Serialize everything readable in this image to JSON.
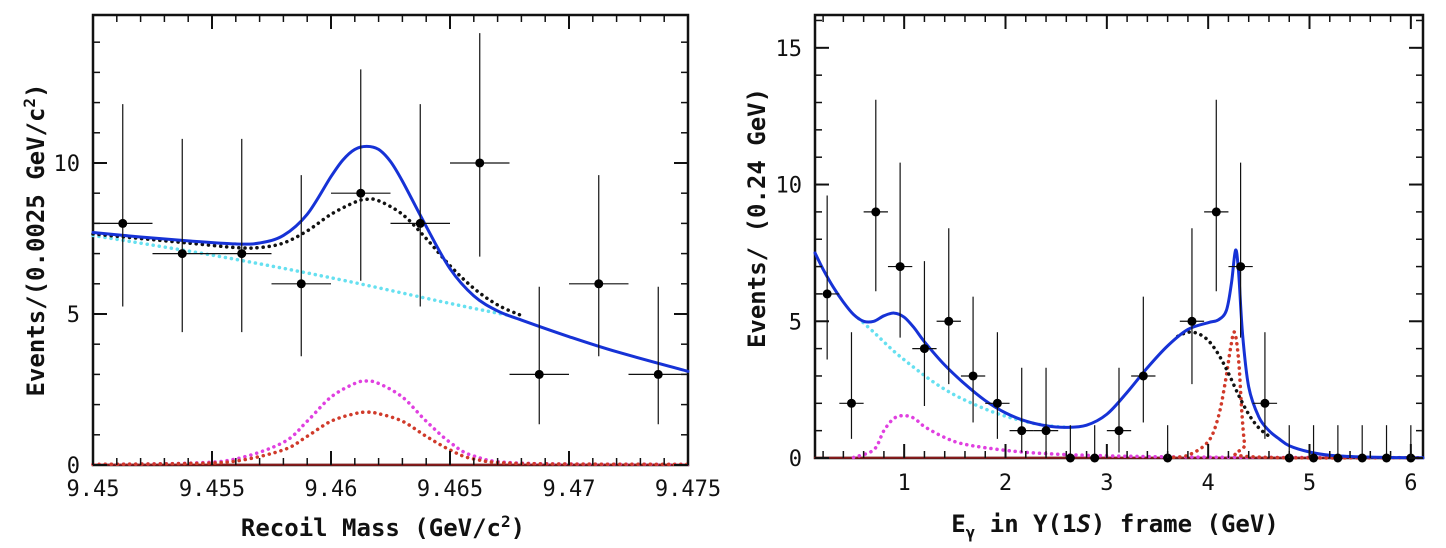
{
  "chart_data": [
    {
      "type": "scatter",
      "panel": "left",
      "xlabel": "Recoil Mass (GeV/c²)",
      "ylabel": "Events/(0.0025 GeV/c²)",
      "xlim": [
        9.45,
        9.475
      ],
      "ylim": [
        0,
        14.9
      ],
      "x_ticks": [
        9.45,
        9.455,
        9.46,
        9.465,
        9.47,
        9.475
      ],
      "x_tick_labels": [
        "9.45",
        "9.455",
        "9.46",
        "9.465",
        "9.47",
        "9.475"
      ],
      "y_ticks": [
        0,
        5,
        10
      ],
      "y_tick_labels": [
        "0",
        "5",
        "10"
      ],
      "points": [
        {
          "x": 9.45125,
          "y": 8,
          "xerr": 0.00125,
          "ylo": 5.25,
          "yhi": 11.95
        },
        {
          "x": 9.45375,
          "y": 7,
          "xerr": 0.00125,
          "ylo": 4.4,
          "yhi": 10.8
        },
        {
          "x": 9.45625,
          "y": 7,
          "xerr": 0.00125,
          "ylo": 4.4,
          "yhi": 10.8
        },
        {
          "x": 9.45875,
          "y": 6,
          "xerr": 0.00125,
          "ylo": 3.6,
          "yhi": 9.6
        },
        {
          "x": 9.46125,
          "y": 9,
          "xerr": 0.00125,
          "ylo": 6.1,
          "yhi": 13.1
        },
        {
          "x": 9.46375,
          "y": 8,
          "xerr": 0.00125,
          "ylo": 5.25,
          "yhi": 11.95
        },
        {
          "x": 9.46625,
          "y": 10,
          "xerr": 0.00125,
          "ylo": 6.9,
          "yhi": 14.3
        },
        {
          "x": 9.46875,
          "y": 3,
          "xerr": 0.00125,
          "ylo": 1.35,
          "yhi": 5.9
        },
        {
          "x": 9.47125,
          "y": 6,
          "xerr": 0.00125,
          "ylo": 3.6,
          "yhi": 9.6
        },
        {
          "x": 9.47375,
          "y": 3,
          "xerr": 0.00125,
          "ylo": 1.35,
          "yhi": 5.9
        }
      ],
      "curves": [
        {
          "name": "total fit",
          "color": "#1632d6",
          "style": "solid",
          "x": [
            9.45,
            9.452,
            9.454,
            9.456,
            9.457,
            9.458,
            9.459,
            9.46,
            9.4605,
            9.461,
            9.4615,
            9.462,
            9.4625,
            9.463,
            9.464,
            9.465,
            9.466,
            9.467,
            9.468,
            9.47,
            9.472,
            9.475
          ],
          "y": [
            7.7,
            7.55,
            7.42,
            7.32,
            7.35,
            7.6,
            8.3,
            9.55,
            10.1,
            10.45,
            10.55,
            10.45,
            10.05,
            9.4,
            7.9,
            6.5,
            5.6,
            5.1,
            4.8,
            4.25,
            3.75,
            3.1
          ]
        },
        {
          "name": "peaking background",
          "color": "#111111",
          "style": "dotted",
          "x": [
            9.45,
            9.452,
            9.454,
            9.456,
            9.457,
            9.458,
            9.459,
            9.46,
            9.461,
            9.4615,
            9.462,
            9.463,
            9.464,
            9.465,
            9.466,
            9.467,
            9.468
          ],
          "y": [
            7.65,
            7.5,
            7.35,
            7.2,
            7.2,
            7.35,
            7.75,
            8.3,
            8.7,
            8.8,
            8.75,
            8.3,
            7.5,
            6.6,
            5.85,
            5.3,
            4.95
          ]
        },
        {
          "name": "continuum background",
          "color": "#66e0f0",
          "style": "dotted",
          "x": [
            9.45,
            9.455,
            9.46,
            9.465,
            9.4675
          ],
          "y": [
            7.6,
            6.95,
            6.2,
            5.35,
            4.95
          ]
        },
        {
          "name": "signal component",
          "color": "#e040e0",
          "style": "dotted",
          "x": [
            9.45,
            9.454,
            9.456,
            9.458,
            9.459,
            9.46,
            9.461,
            9.4615,
            9.462,
            9.463,
            9.464,
            9.465,
            9.466,
            9.468,
            9.475
          ],
          "y": [
            0.02,
            0.06,
            0.2,
            0.75,
            1.45,
            2.25,
            2.7,
            2.78,
            2.7,
            2.25,
            1.45,
            0.75,
            0.3,
            0.06,
            0.02
          ]
        },
        {
          "name": "peaking component",
          "color": "#d03a2a",
          "style": "dotted",
          "x": [
            9.45,
            9.454,
            9.456,
            9.458,
            9.459,
            9.46,
            9.461,
            9.4615,
            9.462,
            9.463,
            9.464,
            9.465,
            9.466,
            9.468,
            9.475
          ],
          "y": [
            0.02,
            0.05,
            0.13,
            0.5,
            0.95,
            1.45,
            1.7,
            1.75,
            1.7,
            1.45,
            0.95,
            0.5,
            0.2,
            0.05,
            0.02
          ]
        },
        {
          "name": "baseline",
          "color": "#8b1a1a",
          "style": "solid",
          "x": [
            9.45,
            9.475
          ],
          "y": [
            0.01,
            0.01
          ]
        }
      ]
    },
    {
      "type": "scatter",
      "panel": "right",
      "xlabel_main": "E",
      "xlabel_sub": "γ",
      "xlabel_mid": " in Υ(1",
      "xlabel_italic": "S",
      "xlabel_end": ") frame (GeV)",
      "ylabel": "Events/ (0.24 GeV)",
      "xlim": [
        0.12,
        6.12
      ],
      "ylim": [
        0,
        16.2
      ],
      "x_ticks": [
        1,
        2,
        3,
        4,
        5,
        6
      ],
      "x_tick_labels": [
        "1",
        "2",
        "3",
        "4",
        "5",
        "6"
      ],
      "y_ticks": [
        0,
        5,
        10,
        15
      ],
      "y_tick_labels": [
        "0",
        "5",
        "10",
        "15"
      ],
      "points": [
        {
          "x": 0.24,
          "y": 6,
          "xerr": 0.12,
          "ylo": 3.6,
          "yhi": 9.6
        },
        {
          "x": 0.48,
          "y": 2,
          "xerr": 0.12,
          "ylo": 0.7,
          "yhi": 4.6
        },
        {
          "x": 0.72,
          "y": 9,
          "xerr": 0.12,
          "ylo": 6.1,
          "yhi": 13.1
        },
        {
          "x": 0.96,
          "y": 7,
          "xerr": 0.12,
          "ylo": 4.4,
          "yhi": 10.8
        },
        {
          "x": 1.2,
          "y": 4,
          "xerr": 0.12,
          "ylo": 1.9,
          "yhi": 7.2
        },
        {
          "x": 1.44,
          "y": 5,
          "xerr": 0.12,
          "ylo": 2.7,
          "yhi": 8.4
        },
        {
          "x": 1.68,
          "y": 3,
          "xerr": 0.12,
          "ylo": 1.3,
          "yhi": 5.9
        },
        {
          "x": 1.92,
          "y": 2,
          "xerr": 0.12,
          "ylo": 0.7,
          "yhi": 4.6
        },
        {
          "x": 2.16,
          "y": 1,
          "xerr": 0.12,
          "ylo": 0.2,
          "yhi": 3.3
        },
        {
          "x": 2.4,
          "y": 1,
          "xerr": 0.12,
          "ylo": 0.2,
          "yhi": 3.3
        },
        {
          "x": 2.64,
          "y": 0,
          "xerr": 0,
          "ylo": 0,
          "yhi": 1.2
        },
        {
          "x": 2.88,
          "y": 0,
          "xerr": 0,
          "ylo": 0,
          "yhi": 1.2
        },
        {
          "x": 3.12,
          "y": 1,
          "xerr": 0.12,
          "ylo": 0.2,
          "yhi": 3.3
        },
        {
          "x": 3.36,
          "y": 3,
          "xerr": 0.12,
          "ylo": 1.3,
          "yhi": 5.9
        },
        {
          "x": 3.6,
          "y": 0,
          "xerr": 0,
          "ylo": 0,
          "yhi": 1.2
        },
        {
          "x": 3.84,
          "y": 5,
          "xerr": 0.12,
          "ylo": 2.7,
          "yhi": 8.4
        },
        {
          "x": 4.08,
          "y": 9,
          "xerr": 0.12,
          "ylo": 6.1,
          "yhi": 13.1
        },
        {
          "x": 4.32,
          "y": 7,
          "xerr": 0.12,
          "ylo": 4.4,
          "yhi": 10.8
        },
        {
          "x": 4.56,
          "y": 2,
          "xerr": 0.12,
          "ylo": 0.7,
          "yhi": 4.6
        },
        {
          "x": 4.8,
          "y": 0,
          "xerr": 0,
          "ylo": 0,
          "yhi": 1.2
        },
        {
          "x": 5.04,
          "y": 0,
          "xerr": 0,
          "ylo": 0,
          "yhi": 1.2
        },
        {
          "x": 5.28,
          "y": 0,
          "xerr": 0,
          "ylo": 0,
          "yhi": 1.2
        },
        {
          "x": 5.52,
          "y": 0,
          "xerr": 0,
          "ylo": 0,
          "yhi": 1.2
        },
        {
          "x": 5.76,
          "y": 0,
          "xerr": 0,
          "ylo": 0,
          "yhi": 1.2
        },
        {
          "x": 6.0,
          "y": 0,
          "xerr": 0,
          "ylo": 0,
          "yhi": 1.2
        }
      ],
      "curves": [
        {
          "name": "total fit",
          "color": "#1632d6",
          "style": "solid",
          "x": [
            0.12,
            0.2,
            0.3,
            0.4,
            0.5,
            0.6,
            0.7,
            0.8,
            0.9,
            1.0,
            1.1,
            1.2,
            1.4,
            1.6,
            1.8,
            2.0,
            2.2,
            2.4,
            2.6,
            2.8,
            3.0,
            3.2,
            3.4,
            3.6,
            3.8,
            4.0,
            4.1,
            4.18,
            4.23,
            4.27,
            4.3,
            4.34,
            4.4,
            4.5,
            4.6,
            4.7,
            4.8,
            5.0,
            5.2,
            5.5,
            6.0,
            6.12
          ],
          "y": [
            7.5,
            6.9,
            6.25,
            5.7,
            5.25,
            5.0,
            5.0,
            5.2,
            5.3,
            5.15,
            4.75,
            4.25,
            3.4,
            2.7,
            2.1,
            1.65,
            1.35,
            1.18,
            1.12,
            1.2,
            1.6,
            2.4,
            3.3,
            4.1,
            4.7,
            4.95,
            5.05,
            5.4,
            6.4,
            7.6,
            6.8,
            4.5,
            2.6,
            1.5,
            1.0,
            0.7,
            0.45,
            0.22,
            0.1,
            0.04,
            0.01,
            0.01
          ]
        },
        {
          "name": "continuum background",
          "color": "#66e0f0",
          "style": "dotted",
          "x": [
            0.55,
            0.7,
            0.9,
            1.1,
            1.3,
            1.5,
            1.7,
            1.9,
            2.1,
            2.3,
            2.5,
            2.65
          ],
          "y": [
            5.1,
            4.6,
            3.9,
            3.3,
            2.75,
            2.3,
            1.95,
            1.65,
            1.42,
            1.25,
            1.15,
            1.12
          ]
        },
        {
          "name": "peaking background",
          "color": "#111111",
          "style": "dotted",
          "x": [
            3.7,
            3.8,
            3.9,
            4.0,
            4.1,
            4.2,
            4.3,
            4.4,
            4.5,
            4.6
          ],
          "y": [
            4.45,
            4.6,
            4.55,
            4.3,
            3.8,
            3.1,
            2.3,
            1.6,
            1.1,
            0.8
          ]
        },
        {
          "name": "signal component",
          "color": "#e040e0",
          "style": "dotted",
          "x": [
            0.5,
            0.7,
            0.8,
            0.9,
            1.0,
            1.1,
            1.2,
            1.4,
            1.6,
            2.0,
            2.4,
            3.0,
            4.0,
            6.1
          ],
          "y": [
            0.02,
            0.3,
            1.0,
            1.45,
            1.55,
            1.45,
            1.15,
            0.75,
            0.5,
            0.28,
            0.16,
            0.08,
            0.03,
            0.01
          ]
        },
        {
          "name": "peaking component",
          "color": "#d03a2a",
          "style": "dotted",
          "x": [
            3.6,
            3.8,
            4.0,
            4.1,
            4.17,
            4.22,
            4.26,
            4.3,
            4.33,
            4.36,
            4.4,
            6.1
          ],
          "y": [
            0.02,
            0.1,
            0.6,
            1.5,
            2.8,
            4.0,
            4.6,
            3.6,
            1.8,
            0.5,
            0.05,
            0.01
          ]
        },
        {
          "name": "baseline",
          "color": "#8b1a1a",
          "style": "solid",
          "x": [
            0.12,
            6.12
          ],
          "y": [
            0.01,
            0.01
          ]
        }
      ]
    }
  ]
}
